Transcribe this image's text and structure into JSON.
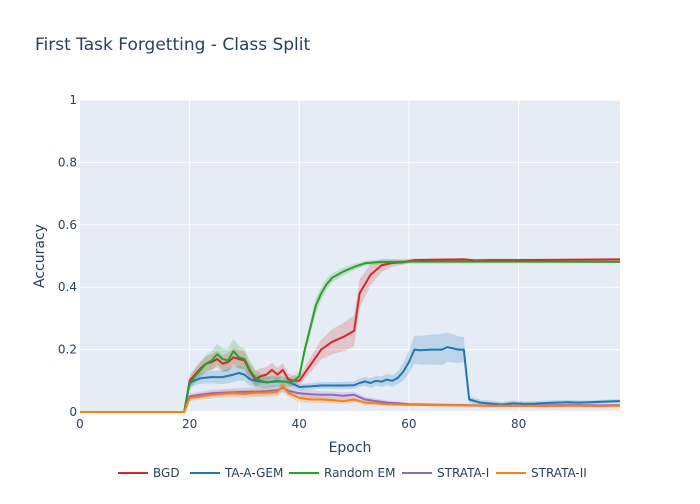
{
  "chart_data": {
    "type": "line",
    "title": "First Task Forgetting - Class Split",
    "xlabel": "Epoch",
    "ylabel": "Accuracy",
    "xlim": [
      0,
      98.5
    ],
    "ylim": [
      0,
      1
    ],
    "xticks": [
      0,
      20,
      40,
      60,
      80
    ],
    "yticks": [
      0,
      0.2,
      0.4,
      0.6,
      0.8,
      1
    ],
    "ytick_labels": [
      "0",
      "0.2",
      "0.4",
      "0.6",
      "0.8",
      "1"
    ],
    "grid": true,
    "legend_position": "bottom",
    "plot_background": "#E5ECF6",
    "series": [
      {
        "name": "BGD",
        "color": "#d62728",
        "band": "rgba(214,39,40,0.2)",
        "points": [
          [
            0,
            0
          ],
          [
            19,
            0
          ],
          [
            20,
            0.1
          ],
          [
            21,
            0.12
          ],
          [
            22,
            0.14
          ],
          [
            23,
            0.155
          ],
          [
            24,
            0.16
          ],
          [
            25,
            0.17
          ],
          [
            26,
            0.155
          ],
          [
            27,
            0.16
          ],
          [
            28,
            0.175
          ],
          [
            29,
            0.17
          ],
          [
            30,
            0.165
          ],
          [
            31,
            0.13
          ],
          [
            32,
            0.105
          ],
          [
            33,
            0.115
          ],
          [
            34,
            0.12
          ],
          [
            35,
            0.135
          ],
          [
            36,
            0.12
          ],
          [
            37,
            0.135
          ],
          [
            38,
            0.105
          ],
          [
            39,
            0.1
          ],
          [
            40,
            0.1
          ],
          [
            42,
            0.15
          ],
          [
            44,
            0.2
          ],
          [
            46,
            0.225
          ],
          [
            48,
            0.24
          ],
          [
            50,
            0.26
          ],
          [
            51,
            0.38
          ],
          [
            53,
            0.44
          ],
          [
            55,
            0.47
          ],
          [
            57,
            0.478
          ],
          [
            59,
            0.48
          ],
          [
            61,
            0.487
          ],
          [
            65,
            0.488
          ],
          [
            70,
            0.489
          ],
          [
            72,
            0.486
          ],
          [
            75,
            0.487
          ],
          [
            80,
            0.487
          ],
          [
            90,
            0.488
          ],
          [
            98.5,
            0.489
          ]
        ],
        "band_width": [
          [
            19,
            0
          ],
          [
            20,
            0.02
          ],
          [
            28,
            0.03
          ],
          [
            38,
            0.02
          ],
          [
            40,
            0.015
          ],
          [
            46,
            0.04
          ],
          [
            50,
            0.05
          ],
          [
            52,
            0.04
          ],
          [
            56,
            0.015
          ],
          [
            60,
            0.005
          ],
          [
            98.5,
            0.004
          ]
        ]
      },
      {
        "name": "TA-A-GEM",
        "color": "#1f77b4",
        "band": "rgba(31,119,180,0.2)",
        "points": [
          [
            0,
            0
          ],
          [
            19,
            0
          ],
          [
            20,
            0.095
          ],
          [
            22,
            0.108
          ],
          [
            24,
            0.112
          ],
          [
            26,
            0.112
          ],
          [
            28,
            0.12
          ],
          [
            29,
            0.125
          ],
          [
            30,
            0.12
          ],
          [
            31,
            0.105
          ],
          [
            32,
            0.1
          ],
          [
            34,
            0.095
          ],
          [
            36,
            0.098
          ],
          [
            38,
            0.097
          ],
          [
            40,
            0.08
          ],
          [
            42,
            0.082
          ],
          [
            44,
            0.085
          ],
          [
            46,
            0.085
          ],
          [
            48,
            0.085
          ],
          [
            50,
            0.086
          ],
          [
            51,
            0.093
          ],
          [
            52,
            0.098
          ],
          [
            53,
            0.093
          ],
          [
            54,
            0.1
          ],
          [
            55,
            0.097
          ],
          [
            56,
            0.104
          ],
          [
            57,
            0.1
          ],
          [
            58,
            0.11
          ],
          [
            59,
            0.13
          ],
          [
            60,
            0.16
          ],
          [
            61,
            0.2
          ],
          [
            62,
            0.198
          ],
          [
            64,
            0.2
          ],
          [
            66,
            0.2
          ],
          [
            67,
            0.208
          ],
          [
            69,
            0.2
          ],
          [
            70,
            0.2
          ],
          [
            71,
            0.04
          ],
          [
            73,
            0.03
          ],
          [
            75,
            0.027
          ],
          [
            77,
            0.024
          ],
          [
            79,
            0.028
          ],
          [
            81,
            0.026
          ],
          [
            83,
            0.027
          ],
          [
            85,
            0.029
          ],
          [
            87,
            0.03
          ],
          [
            89,
            0.031
          ],
          [
            91,
            0.03
          ],
          [
            93,
            0.031
          ],
          [
            95,
            0.033
          ],
          [
            98.5,
            0.035
          ]
        ],
        "band_width": [
          [
            19,
            0
          ],
          [
            20,
            0.015
          ],
          [
            28,
            0.025
          ],
          [
            40,
            0.01
          ],
          [
            50,
            0.012
          ],
          [
            58,
            0.02
          ],
          [
            61,
            0.045
          ],
          [
            66,
            0.05
          ],
          [
            70,
            0.04
          ],
          [
            71,
            0.01
          ],
          [
            98.5,
            0.006
          ]
        ]
      },
      {
        "name": "Random EM",
        "color": "#2ca02c",
        "band": "rgba(44,160,44,0.2)",
        "points": [
          [
            0,
            0
          ],
          [
            19,
            0
          ],
          [
            20,
            0.09
          ],
          [
            21,
            0.115
          ],
          [
            22,
            0.135
          ],
          [
            23,
            0.155
          ],
          [
            24,
            0.165
          ],
          [
            25,
            0.185
          ],
          [
            26,
            0.17
          ],
          [
            27,
            0.165
          ],
          [
            28,
            0.195
          ],
          [
            29,
            0.175
          ],
          [
            30,
            0.17
          ],
          [
            31,
            0.135
          ],
          [
            32,
            0.11
          ],
          [
            33,
            0.1
          ],
          [
            34,
            0.095
          ],
          [
            36,
            0.1
          ],
          [
            38,
            0.095
          ],
          [
            39,
            0.1
          ],
          [
            40,
            0.115
          ],
          [
            41,
            0.2
          ],
          [
            42,
            0.27
          ],
          [
            43,
            0.34
          ],
          [
            44,
            0.38
          ],
          [
            45,
            0.41
          ],
          [
            46,
            0.43
          ],
          [
            47,
            0.44
          ],
          [
            48,
            0.45
          ],
          [
            50,
            0.465
          ],
          [
            52,
            0.477
          ],
          [
            54,
            0.48
          ],
          [
            58,
            0.481
          ],
          [
            60,
            0.482
          ],
          [
            70,
            0.482
          ],
          [
            80,
            0.482
          ],
          [
            98.5,
            0.481
          ]
        ],
        "band_width": [
          [
            19,
            0
          ],
          [
            20,
            0.02
          ],
          [
            28,
            0.04
          ],
          [
            34,
            0.02
          ],
          [
            40,
            0.015
          ],
          [
            43,
            0.025
          ],
          [
            46,
            0.015
          ],
          [
            52,
            0.008
          ],
          [
            98.5,
            0.004
          ]
        ]
      },
      {
        "name": "STRATA-I",
        "color": "#9467bd",
        "band": "rgba(148,103,189,0.2)",
        "points": [
          [
            0,
            0
          ],
          [
            19,
            0
          ],
          [
            20,
            0.05
          ],
          [
            22,
            0.055
          ],
          [
            24,
            0.06
          ],
          [
            26,
            0.062
          ],
          [
            28,
            0.063
          ],
          [
            30,
            0.065
          ],
          [
            32,
            0.065
          ],
          [
            34,
            0.067
          ],
          [
            36,
            0.07
          ],
          [
            37,
            0.078
          ],
          [
            38,
            0.068
          ],
          [
            40,
            0.06
          ],
          [
            42,
            0.057
          ],
          [
            44,
            0.055
          ],
          [
            46,
            0.055
          ],
          [
            48,
            0.052
          ],
          [
            50,
            0.055
          ],
          [
            52,
            0.04
          ],
          [
            54,
            0.035
          ],
          [
            56,
            0.03
          ],
          [
            58,
            0.028
          ],
          [
            60,
            0.025
          ],
          [
            65,
            0.023
          ],
          [
            70,
            0.022
          ],
          [
            75,
            0.02
          ],
          [
            80,
            0.02
          ],
          [
            85,
            0.021
          ],
          [
            90,
            0.022
          ],
          [
            95,
            0.021
          ],
          [
            98.5,
            0.022
          ]
        ],
        "band_width": [
          [
            19,
            0
          ],
          [
            20,
            0.01
          ],
          [
            36,
            0.015
          ],
          [
            50,
            0.01
          ],
          [
            60,
            0.005
          ],
          [
            98.5,
            0.004
          ]
        ]
      },
      {
        "name": "STRATA-II",
        "color": "#ff7f0e",
        "band": "rgba(255,127,14,0.2)",
        "points": [
          [
            0,
            0
          ],
          [
            19,
            0
          ],
          [
            20,
            0.045
          ],
          [
            22,
            0.05
          ],
          [
            24,
            0.055
          ],
          [
            26,
            0.058
          ],
          [
            28,
            0.06
          ],
          [
            30,
            0.058
          ],
          [
            32,
            0.062
          ],
          [
            34,
            0.062
          ],
          [
            36,
            0.065
          ],
          [
            37,
            0.083
          ],
          [
            38,
            0.062
          ],
          [
            40,
            0.045
          ],
          [
            42,
            0.04
          ],
          [
            44,
            0.04
          ],
          [
            46,
            0.038
          ],
          [
            48,
            0.035
          ],
          [
            50,
            0.04
          ],
          [
            52,
            0.03
          ],
          [
            54,
            0.028
          ],
          [
            56,
            0.025
          ],
          [
            58,
            0.024
          ],
          [
            60,
            0.023
          ],
          [
            65,
            0.022
          ],
          [
            70,
            0.021
          ],
          [
            75,
            0.02
          ],
          [
            80,
            0.02
          ],
          [
            85,
            0.019
          ],
          [
            90,
            0.02
          ],
          [
            95,
            0.019
          ],
          [
            98.5,
            0.02
          ]
        ],
        "band_width": [
          [
            19,
            0
          ],
          [
            20,
            0.01
          ],
          [
            36,
            0.015
          ],
          [
            50,
            0.008
          ],
          [
            60,
            0.004
          ],
          [
            98.5,
            0.003
          ]
        ]
      }
    ]
  }
}
